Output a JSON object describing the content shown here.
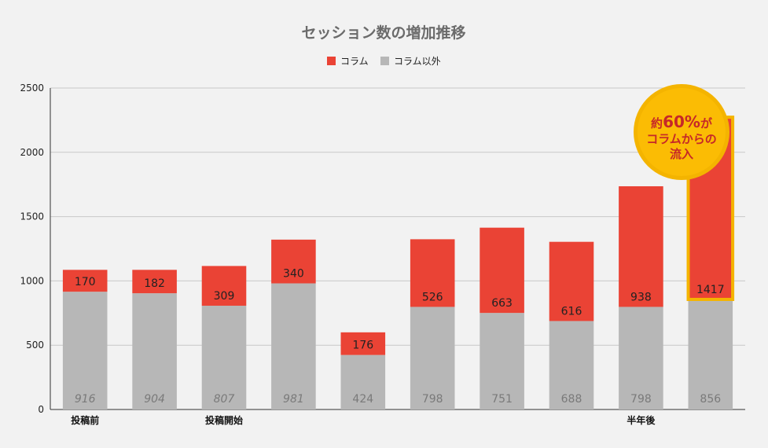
{
  "chart_data": {
    "type": "bar",
    "stacked": true,
    "title": "セッション数の増加推移",
    "ylim": [
      0,
      2500
    ],
    "yticks": [
      0,
      500,
      1000,
      1500,
      2000,
      2500
    ],
    "categories": [
      "投稿前",
      "",
      "投稿開始",
      "",
      "",
      "",
      "",
      "",
      "半年後",
      ""
    ],
    "series": [
      {
        "name": "コラム以外",
        "color": "#b7b7b7",
        "values": [
          916,
          904,
          807,
          981,
          424,
          798,
          751,
          688,
          798,
          856
        ]
      },
      {
        "name": "コラム",
        "color": "#ea4335",
        "values": [
          170,
          182,
          309,
          340,
          176,
          526,
          663,
          616,
          938,
          1417
        ]
      }
    ],
    "italic_bottom_labels": [
      0,
      1,
      2,
      3
    ],
    "legend": {
      "position": "top"
    },
    "grid": true,
    "highlight": {
      "index": 9,
      "color": "#f4b400"
    },
    "annotation": {
      "line1_prefix": "約",
      "line1_number": "60%",
      "line1_suffix": "が",
      "line2": "コラムからの",
      "line3": "流入",
      "fill": "#fbbc04"
    }
  }
}
